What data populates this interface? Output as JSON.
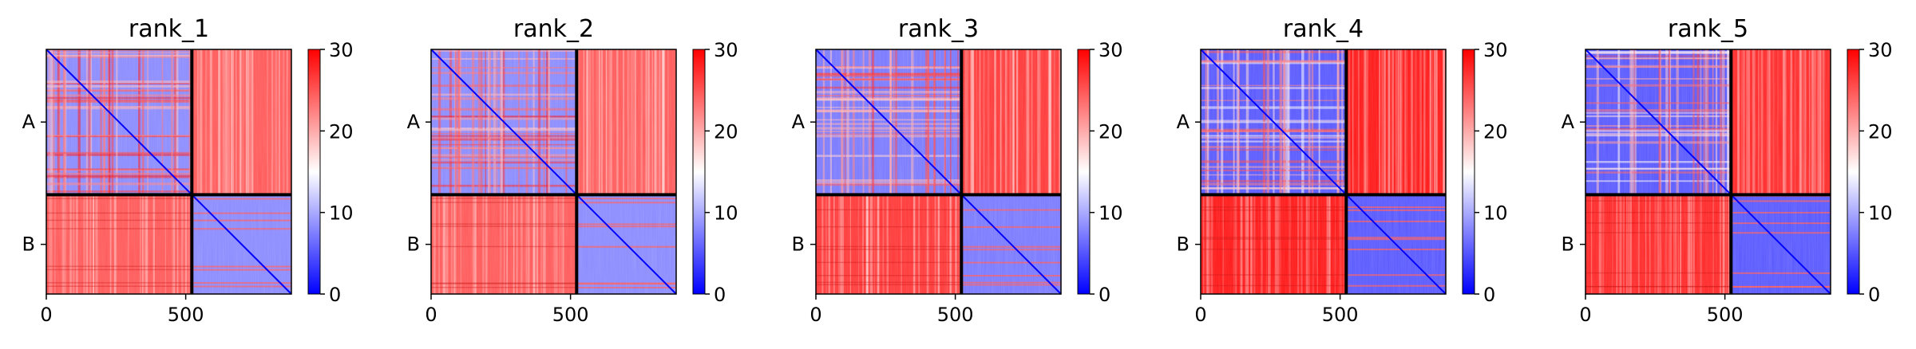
{
  "chart_data": {
    "type": "heatmap",
    "colormap": "bwr",
    "colorbar": {
      "min": 0,
      "max": 30,
      "ticks": [
        "0",
        "10",
        "20",
        "30"
      ]
    },
    "x_ticks": {
      "values": [
        0,
        500
      ],
      "labels": [
        "0",
        "500"
      ]
    },
    "x_range": [
      0,
      879
    ],
    "chain_boundary": 522,
    "y_ticks": {
      "labels": [
        "A",
        "B"
      ]
    },
    "panels": [
      {
        "title": "rank_1",
        "intra_level": 8,
        "inter_level": 25
      },
      {
        "title": "rank_2",
        "intra_level": 8,
        "inter_level": 25
      },
      {
        "title": "rank_3",
        "intra_level": 7,
        "inter_level": 27
      },
      {
        "title": "rank_4",
        "intra_level": 5,
        "inter_level": 29
      },
      {
        "title": "rank_5",
        "intra_level": 5,
        "inter_level": 28
      }
    ]
  }
}
